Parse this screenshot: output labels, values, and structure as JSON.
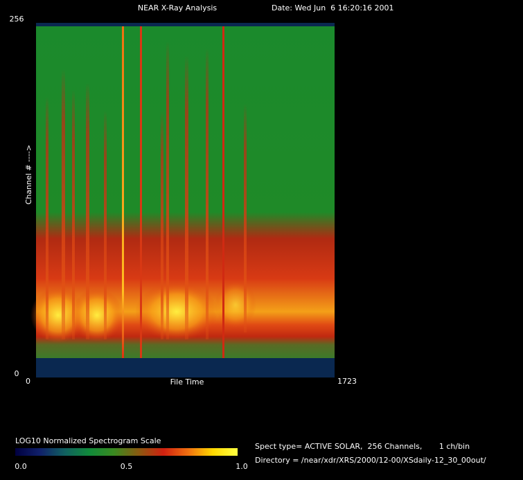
{
  "chart_data": {
    "type": "spectrogram",
    "title": "NEAR X-Ray Analysis",
    "date": "Date: Wed Jun  6 16:20:16 2001",
    "x_label": "File Time",
    "y_label": "Channel # ---->",
    "xlim": [
      0,
      1723
    ],
    "xticks": [
      0,
      1723
    ],
    "ylim": [
      0,
      256
    ],
    "yticks": [
      0,
      256
    ],
    "colorbar": {
      "title": "LOG10 Normalized Spectrogram Scale",
      "lim": [
        0,
        1
      ],
      "ticks": [
        {
          "value": 0,
          "label": "0.0"
        },
        0.5,
        {
          "value": 1,
          "label": "1.0"
        }
      ],
      "colors": [
        "#000040",
        "#10206a",
        "#106060",
        "#108a3a",
        "#3a8a20",
        "#8a5a10",
        "#d02010",
        "#f07010",
        "#ffd800",
        "#ffff40"
      ]
    },
    "info": [
      "Spect type= ACTIVE SOLAR,  256 Channels,       1 ch/bin",
      "Directory = /near/xdr/XRS/2000/12-00/XSdaily-12_30_00out/"
    ]
  }
}
